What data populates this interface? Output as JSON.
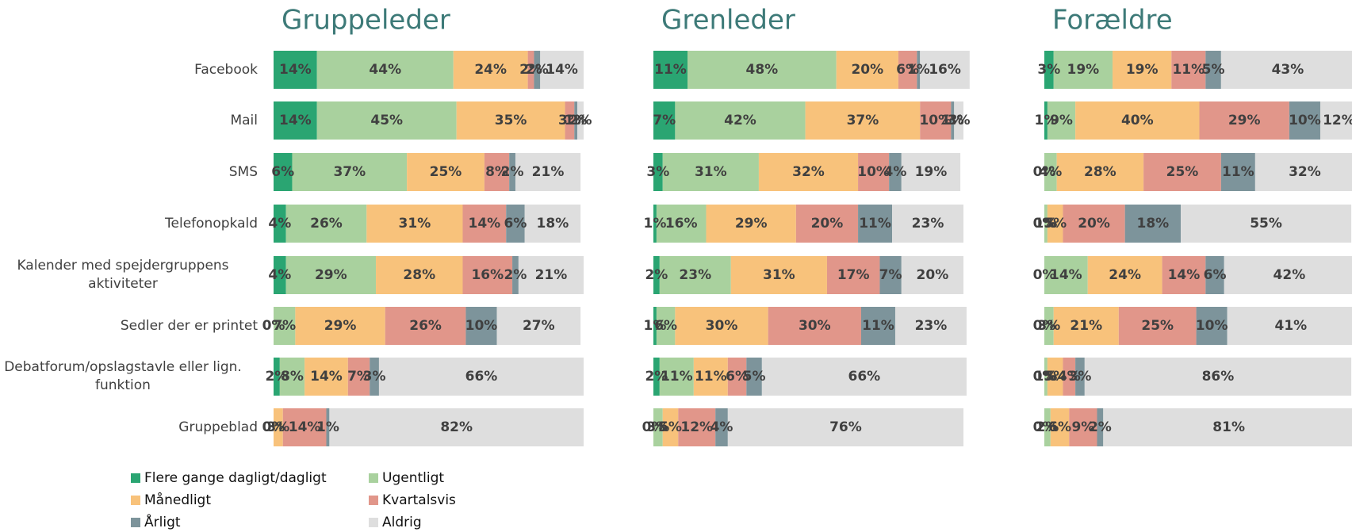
{
  "chart_data": [
    {
      "type": "bar",
      "title": "Gruppeleder",
      "xlim": [
        0,
        100
      ],
      "categories": [
        "Facebook",
        "Mail",
        "SMS",
        "Telefonopkald",
        "Kalender med spejdergruppens aktiviteter",
        "Sedler der er printet",
        "Debatforum/opslagstavle eller lign. funktion",
        "Gruppeblad"
      ],
      "series": [
        {
          "name": "Flere gange dagligt/dagligt",
          "color": "#2aa572",
          "values": [
            14,
            14,
            6,
            4,
            4,
            0,
            2,
            0
          ],
          "value_labels": [
            "14%",
            "14%",
            "6%",
            "4%",
            "4%",
            "0%",
            "2%",
            "0%"
          ]
        },
        {
          "name": "Ugentligt",
          "color": "#a9d19e",
          "values": [
            44,
            45,
            37,
            26,
            29,
            7,
            8,
            0
          ],
          "value_labels": [
            "44%",
            "45%",
            "37%",
            "26%",
            "29%",
            "7%",
            "8%",
            "0%"
          ]
        },
        {
          "name": "Månedligt",
          "color": "#f8c27b",
          "values": [
            24,
            35,
            25,
            31,
            28,
            29,
            14,
            3
          ],
          "value_labels": [
            "24%",
            "35%",
            "25%",
            "31%",
            "28%",
            "29%",
            "14%",
            "3%"
          ]
        },
        {
          "name": "Kvartalsvis",
          "color": "#e1968a",
          "values": [
            2,
            3,
            8,
            14,
            16,
            26,
            7,
            14
          ],
          "value_labels": [
            "2%",
            "3%",
            "8%",
            "14%",
            "16%",
            "26%",
            "7%",
            "14%"
          ]
        },
        {
          "name": "Årligt",
          "color": "#7d949b",
          "values": [
            2,
            1,
            2,
            6,
            2,
            10,
            3,
            1
          ],
          "value_labels": [
            "2%",
            "1%",
            "2%",
            "6%",
            "2%",
            "10%",
            "3%",
            "1%"
          ]
        },
        {
          "name": "Aldrig",
          "color": "#dedede",
          "values": [
            14,
            2,
            21,
            18,
            21,
            27,
            66,
            82
          ],
          "value_labels": [
            "14%",
            "2%",
            "21%",
            "18%",
            "21%",
            "27%",
            "66%",
            "82%"
          ]
        }
      ]
    },
    {
      "type": "bar",
      "title": "Grenleder",
      "xlim": [
        0,
        100
      ],
      "series": [
        {
          "color": "#2aa572",
          "values": [
            11,
            7,
            3,
            1,
            2,
            1,
            2,
            0
          ],
          "value_labels": [
            "11%",
            "7%",
            "3%",
            "1%",
            "2%",
            "1%",
            "2%",
            "0%"
          ]
        },
        {
          "color": "#a9d19e",
          "values": [
            48,
            42,
            31,
            16,
            23,
            6,
            11,
            3
          ],
          "value_labels": [
            "48%",
            "42%",
            "31%",
            "16%",
            "23%",
            "6%",
            "11%",
            "3%"
          ]
        },
        {
          "color": "#f8c27b",
          "values": [
            20,
            37,
            32,
            29,
            31,
            30,
            11,
            5
          ],
          "value_labels": [
            "20%",
            "37%",
            "32%",
            "29%",
            "31%",
            "30%",
            "11%",
            "5%"
          ]
        },
        {
          "color": "#e1968a",
          "values": [
            6,
            10,
            10,
            20,
            17,
            30,
            6,
            12
          ],
          "value_labels": [
            "6%",
            "10%",
            "10%",
            "20%",
            "17%",
            "30%",
            "6%",
            "12%"
          ]
        },
        {
          "color": "#7d949b",
          "values": [
            1,
            1,
            4,
            11,
            7,
            11,
            5,
            4
          ],
          "value_labels": [
            "1%",
            "1%",
            "4%",
            "11%",
            "7%",
            "11%",
            "5%",
            "4%"
          ]
        },
        {
          "color": "#dedede",
          "values": [
            16,
            3,
            19,
            23,
            20,
            23,
            66,
            76
          ],
          "value_labels": [
            "16%",
            "3%",
            "19%",
            "23%",
            "20%",
            "23%",
            "66%",
            "76%"
          ]
        }
      ]
    },
    {
      "type": "bar",
      "title": "Forældre",
      "xlim": [
        0,
        100
      ],
      "series": [
        {
          "color": "#2aa572",
          "values": [
            3,
            1,
            0,
            0,
            0,
            0,
            0,
            0
          ],
          "value_labels": [
            "3%",
            "1%",
            "0%",
            "0%",
            "0%",
            "0%",
            "0%",
            "0%"
          ]
        },
        {
          "color": "#a9d19e",
          "values": [
            19,
            9,
            4,
            1,
            14,
            3,
            1,
            2
          ],
          "value_labels": [
            "19%",
            "9%",
            "4%",
            "1%",
            "14%",
            "3%",
            "1%",
            "2%"
          ]
        },
        {
          "color": "#f8c27b",
          "values": [
            19,
            40,
            28,
            5,
            24,
            21,
            5,
            6
          ],
          "value_labels": [
            "19%",
            "40%",
            "28%",
            "5%",
            "24%",
            "21%",
            "5%",
            "6%"
          ]
        },
        {
          "color": "#e1968a",
          "values": [
            11,
            29,
            25,
            20,
            14,
            25,
            4,
            9
          ],
          "value_labels": [
            "11%",
            "29%",
            "25%",
            "20%",
            "14%",
            "25%",
            "4%",
            "9%"
          ]
        },
        {
          "color": "#7d949b",
          "values": [
            5,
            10,
            11,
            18,
            6,
            10,
            3,
            2
          ],
          "value_labels": [
            "5%",
            "10%",
            "11%",
            "18%",
            "6%",
            "10%",
            "3%",
            "2%"
          ]
        },
        {
          "color": "#dedede",
          "values": [
            43,
            12,
            32,
            55,
            42,
            41,
            86,
            81
          ],
          "value_labels": [
            "43%",
            "12%",
            "32%",
            "55%",
            "42%",
            "41%",
            "86%",
            "81%"
          ]
        }
      ]
    }
  ]
}
